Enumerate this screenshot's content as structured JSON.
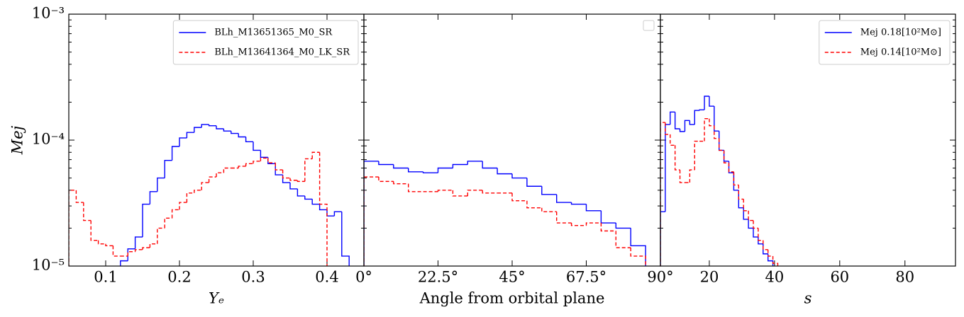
{
  "chart_data": [
    {
      "type": "histogram",
      "xlabel": "Yₑ",
      "ylabel": "Mej",
      "yscale": "log",
      "ylim": [
        1e-05,
        0.001
      ],
      "yticks": [
        {
          "value": 1e-05,
          "label": "10⁻⁵"
        },
        {
          "value": 0.0001,
          "label": "10⁻⁴"
        },
        {
          "value": 0.001,
          "label": "10⁻³"
        }
      ],
      "xlim": [
        0.05,
        0.45
      ],
      "xticks": [
        0.1,
        0.2,
        0.3,
        0.4
      ],
      "legend": "upper right",
      "bins": [
        0.05,
        0.06,
        0.07,
        0.08,
        0.09,
        0.1,
        0.11,
        0.12,
        0.13,
        0.14,
        0.15,
        0.16,
        0.17,
        0.18,
        0.19,
        0.2,
        0.21,
        0.22,
        0.23,
        0.24,
        0.25,
        0.26,
        0.27,
        0.28,
        0.29,
        0.3,
        0.31,
        0.32,
        0.33,
        0.34,
        0.35,
        0.36,
        0.37,
        0.38,
        0.39,
        0.4,
        0.41,
        0.42,
        0.43
      ],
      "series": [
        {
          "name": "BLh_M13651365_M0_SR",
          "color": "#0000ff",
          "linestyle": "solid",
          "values": [
            null,
            null,
            null,
            null,
            null,
            null,
            null,
            1.1e-05,
            1.37e-05,
            1.7e-05,
            3.1e-05,
            3.9e-05,
            5e-05,
            6.9e-05,
            8.9e-05,
            0.000104,
            0.000115,
            0.000126,
            0.000133,
            0.00013,
            0.000123,
            0.000118,
            0.000113,
            0.000106,
            9.7e-05,
            8.3e-05,
            7.3e-05,
            6.5e-05,
            5.3e-05,
            4.6e-05,
            4.1e-05,
            3.6e-05,
            3.4e-05,
            3.1e-05,
            2.8e-05,
            2.5e-05,
            2.7e-05,
            1.2e-05
          ]
        },
        {
          "name": "BLh_M13641364_M0_LK_SR",
          "color": "#ff0000",
          "linestyle": "dashed",
          "values": [
            4e-05,
            3.2e-05,
            2.3e-05,
            1.6e-05,
            1.5e-05,
            1.45e-05,
            1.2e-05,
            1.2e-05,
            1.3e-05,
            1.35e-05,
            1.4e-05,
            1.5e-05,
            2e-05,
            2.4e-05,
            2.8e-05,
            3.2e-05,
            3.8e-05,
            4e-05,
            4.6e-05,
            5.1e-05,
            5.5e-05,
            6e-05,
            6e-05,
            6.2e-05,
            6.5e-05,
            6.8e-05,
            7.2e-05,
            6.6e-05,
            5.8e-05,
            5e-05,
            4.8e-05,
            4.7e-05,
            7.1e-05,
            8e-05,
            3.1e-05,
            null,
            null,
            null
          ]
        }
      ]
    },
    {
      "type": "histogram",
      "xlabel": "Angle from orbital plane",
      "xlim": [
        0,
        90
      ],
      "xticks": [
        {
          "value": 0,
          "label": "0°"
        },
        {
          "value": 22.5,
          "label": "22.5°"
        },
        {
          "value": 45,
          "label": "45°"
        },
        {
          "value": 67.5,
          "label": "67.5°"
        },
        {
          "value": 90,
          "label": "90°"
        }
      ],
      "bins": [
        0,
        4.5,
        9,
        13.5,
        18,
        22.5,
        27,
        31.5,
        36,
        40.5,
        45,
        49.5,
        54,
        58.5,
        63,
        67.5,
        72,
        76.5,
        81,
        85.5,
        90
      ],
      "series": [
        {
          "color": "#0000ff",
          "linestyle": "solid",
          "values": [
            6.8e-05,
            6.4e-05,
            6e-05,
            5.6e-05,
            5.5e-05,
            6e-05,
            6.4e-05,
            6.8e-05,
            6e-05,
            5.4e-05,
            5e-05,
            4.3e-05,
            3.7e-05,
            3.2e-05,
            3.1e-05,
            2.75e-05,
            2.2e-05,
            2e-05,
            1.45e-05,
            null
          ]
        },
        {
          "color": "#ff0000",
          "linestyle": "dashed",
          "values": [
            5.1e-05,
            4.7e-05,
            4.5e-05,
            3.9e-05,
            3.9e-05,
            4e-05,
            3.6e-05,
            4e-05,
            3.8e-05,
            3.8e-05,
            3.3e-05,
            2.9e-05,
            2.7e-05,
            2.2e-05,
            2.1e-05,
            2.2e-05,
            1.9e-05,
            1.4e-05,
            1.2e-05,
            null
          ]
        }
      ]
    },
    {
      "type": "histogram",
      "xlabel": "s",
      "xlim": [
        5,
        95.5
      ],
      "xticks": [
        20,
        40,
        60,
        80
      ],
      "legend": "upper right",
      "bins": [
        5,
        6.5,
        8,
        9.5,
        11,
        12.5,
        14,
        15.5,
        17,
        18.5,
        20,
        21.5,
        23,
        24.5,
        26,
        27.5,
        29,
        30.5,
        32,
        33.5,
        35,
        36.5,
        38,
        39.5,
        41
      ],
      "series": [
        {
          "name": "Mej 0.18[10²M⊙]",
          "color": "#0000ff",
          "linestyle": "solid",
          "values": [
            2.7e-05,
            0.000133,
            0.000167,
            0.000123,
            0.000117,
            0.000143,
            0.000133,
            0.000172,
            0.000174,
            0.000223,
            0.000186,
            0.000118,
            8.3e-05,
            6.8e-05,
            5.5e-05,
            4e-05,
            2.9e-05,
            2.35e-05,
            2e-05,
            1.7e-05,
            1.5e-05,
            1.25e-05,
            1.1e-05,
            null
          ]
        },
        {
          "name": "Mej 0.14[10²M⊙]",
          "color": "#ff0000",
          "linestyle": "dashed",
          "values": [
            0.000138,
            0.000111,
            9.1e-05,
            5.8e-05,
            4.6e-05,
            4.6e-05,
            5.8e-05,
            9.8e-05,
            9.8e-05,
            0.000148,
            0.00013,
            0.000103,
            8.3e-05,
            6.6e-05,
            5.6e-05,
            4.4e-05,
            3.4e-05,
            2.75e-05,
            2.3e-05,
            2e-05,
            1.6e-05,
            1.35e-05,
            1.2e-05,
            1.05e-05
          ]
        }
      ]
    }
  ]
}
